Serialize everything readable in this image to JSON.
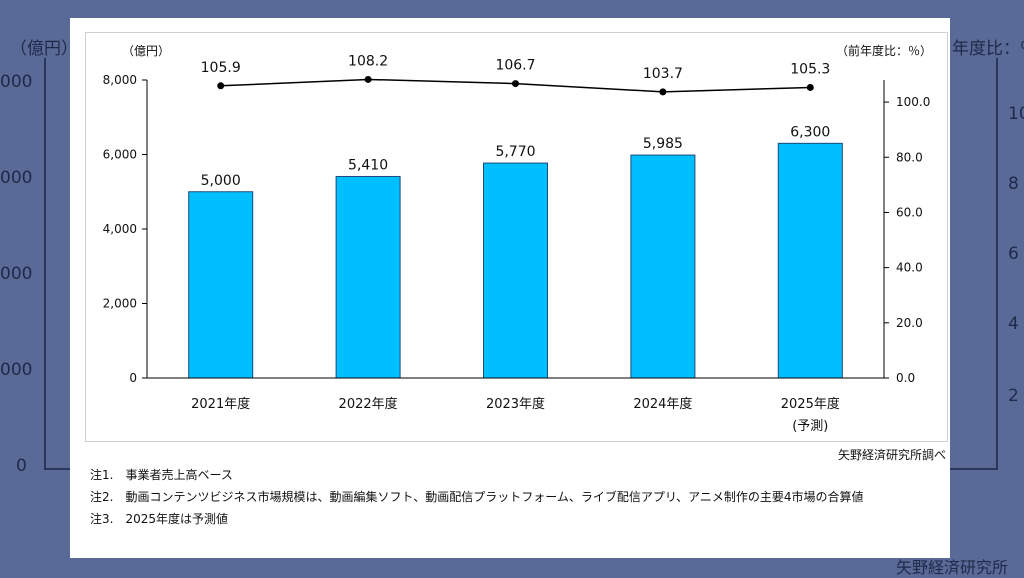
{
  "background": {
    "left_unit": "（億円）",
    "right_unit": "年度比：％",
    "left_ticks": [
      "000",
      "000",
      "000",
      "000",
      "0"
    ],
    "right_ticks": [
      "10",
      "8",
      "6",
      "4",
      "2"
    ],
    "source": "矢野経済研究所"
  },
  "notes": [
    "注1.　事業者売上高ベース",
    "注2.　動画コンテンツビジネス市場規模は、動画編集ソフト、動画配信プラットフォーム、ライブ配信アプリ、アニメ制作の主要4市場の合算値",
    "注3.　2025年度は予測値"
  ],
  "source": "矢野経済研究所調べ",
  "colors": {
    "bar": "#00bfff",
    "bar_border": "#1a4a7a",
    "line": "#000000",
    "page_bg": "#5a6a96"
  },
  "chart_data": {
    "type": "bar",
    "categories": [
      "2021年度",
      "2022年度",
      "2023年度",
      "2024年度",
      "2025年度"
    ],
    "category_notes": [
      "",
      "",
      "",
      "",
      "(予測)"
    ],
    "series": [
      {
        "type": "bar",
        "axis": "left",
        "values": [
          5000,
          5410,
          5770,
          5985,
          6300
        ],
        "labels": [
          "5,000",
          "5,410",
          "5,770",
          "5,985",
          "6,300"
        ]
      },
      {
        "type": "line",
        "axis": "right",
        "values": [
          105.9,
          108.2,
          106.7,
          103.7,
          105.3
        ],
        "labels": [
          "105.9",
          "108.2",
          "106.7",
          "103.7",
          "105.3"
        ]
      }
    ],
    "ylabel_left": "（億円）",
    "ylabel_right": "（前年度比：％）",
    "ylim_left": [
      0,
      8000
    ],
    "ylim_right": [
      0,
      108
    ],
    "yticks_left": [
      "0",
      "2,000",
      "4,000",
      "6,000",
      "8,000"
    ],
    "yticks_left_values": [
      0,
      2000,
      4000,
      6000,
      8000
    ],
    "yticks_right": [
      "0.0",
      "20.0",
      "40.0",
      "60.0",
      "80.0",
      "100.0"
    ],
    "yticks_right_values": [
      0,
      20,
      40,
      60,
      80,
      100
    ],
    "grid": false,
    "legend": "none"
  }
}
